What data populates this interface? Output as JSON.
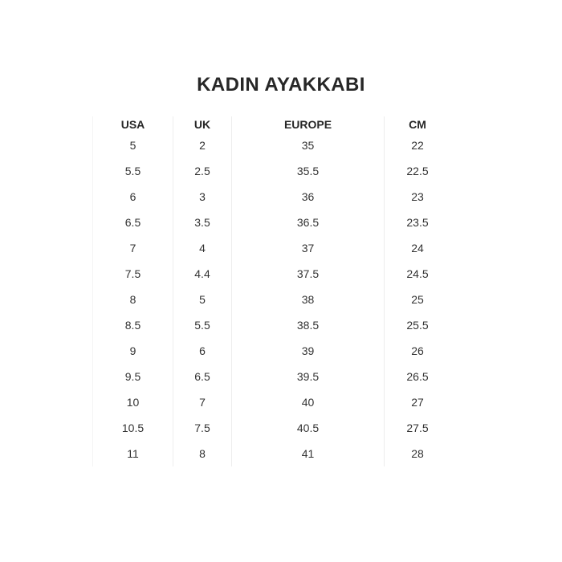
{
  "title": "KADIN AYAKKABI",
  "chart_data": {
    "type": "table",
    "title": "KADIN AYAKKABI",
    "columns": [
      "USA",
      "UK",
      "EUROPE",
      "CM"
    ],
    "rows": [
      [
        "5",
        "2",
        "35",
        "22"
      ],
      [
        "5.5",
        "2.5",
        "35.5",
        "22.5"
      ],
      [
        "6",
        "3",
        "36",
        "23"
      ],
      [
        "6.5",
        "3.5",
        "36.5",
        "23.5"
      ],
      [
        "7",
        "4",
        "37",
        "24"
      ],
      [
        "7.5",
        "4.4",
        "37.5",
        "24.5"
      ],
      [
        "8",
        "5",
        "38",
        "25"
      ],
      [
        "8.5",
        "5.5",
        "38.5",
        "25.5"
      ],
      [
        "9",
        "6",
        "39",
        "26"
      ],
      [
        "9.5",
        "6.5",
        "39.5",
        "26.5"
      ],
      [
        "10",
        "7",
        "40",
        "27"
      ],
      [
        "10.5",
        "7.5",
        "40.5",
        "27.5"
      ],
      [
        "11",
        "8",
        "41",
        "28"
      ]
    ],
    "layout": {
      "grid": "vertical-column-dividers-only",
      "legend": "none"
    }
  },
  "colors": {
    "text": "#333333",
    "title": "#272727",
    "divider": "#ededed",
    "edge": "#f4f4f4",
    "background": "#ffffff"
  }
}
